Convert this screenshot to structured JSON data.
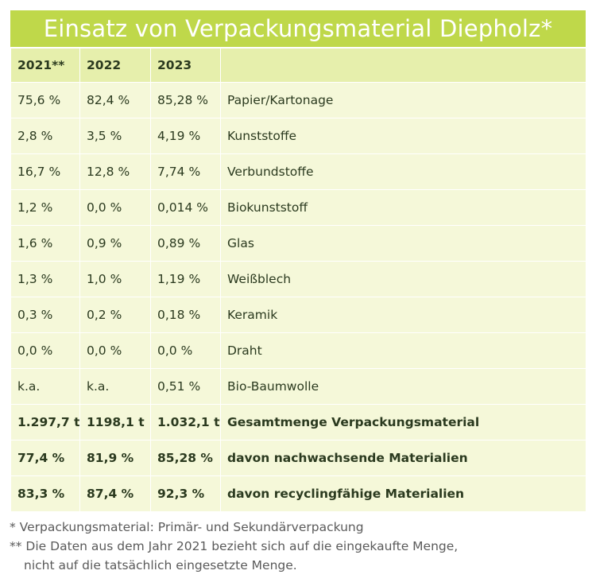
{
  "title": "Einsatz von Verpackungsmaterial Diepholz*",
  "colors": {
    "title_bg": "#bfd84a",
    "header_bg": "#e6efac",
    "row_bg": "#f5f8d9",
    "text": "#2b3a1f"
  },
  "table": {
    "headers": [
      "2021**",
      "2022",
      "2023",
      ""
    ],
    "rows": [
      [
        "75,6 %",
        "82,4 %",
        "85,28 %",
        "Papier/Kartonage"
      ],
      [
        "2,8 %",
        "3,5 %",
        "4,19 %",
        "Kunststoffe"
      ],
      [
        "16,7 %",
        "12,8 %",
        "7,74 %",
        "Verbundstoffe"
      ],
      [
        "1,2 %",
        "0,0 %",
        "0,014 %",
        "Biokunststoff"
      ],
      [
        "1,6 %",
        "0,9 %",
        "0,89 %",
        "Glas"
      ],
      [
        "1,3 %",
        "1,0 %",
        "1,19 %",
        "Weißblech"
      ],
      [
        "0,3 %",
        "0,2 %",
        "0,18 %",
        "Keramik"
      ],
      [
        "0,0 %",
        "0,0 %",
        "0,0 %",
        "Draht"
      ],
      [
        "k.a.",
        "k.a.",
        "0,51 %",
        "Bio-Baumwolle"
      ],
      [
        "1.297,7 t",
        "1198,1 t",
        "1.032,1 t",
        "Gesamtmenge Verpackungsmaterial"
      ],
      [
        "77,4 %",
        "81,9 %",
        "85,28 %",
        "davon nachwachsende Materialien"
      ],
      [
        "83,3 %",
        "87,4 %",
        "92,3 %",
        "davon recyclingfähige Materialien"
      ]
    ]
  },
  "footnotes": {
    "line1": "* Verpackungsmaterial: Primär- und Sekundärverpackung",
    "line2": "** Die Daten aus dem Jahr 2021 bezieht sich auf die eingekaufte Menge,",
    "line3": "nicht auf die tatsächlich eingesetzte Menge."
  }
}
